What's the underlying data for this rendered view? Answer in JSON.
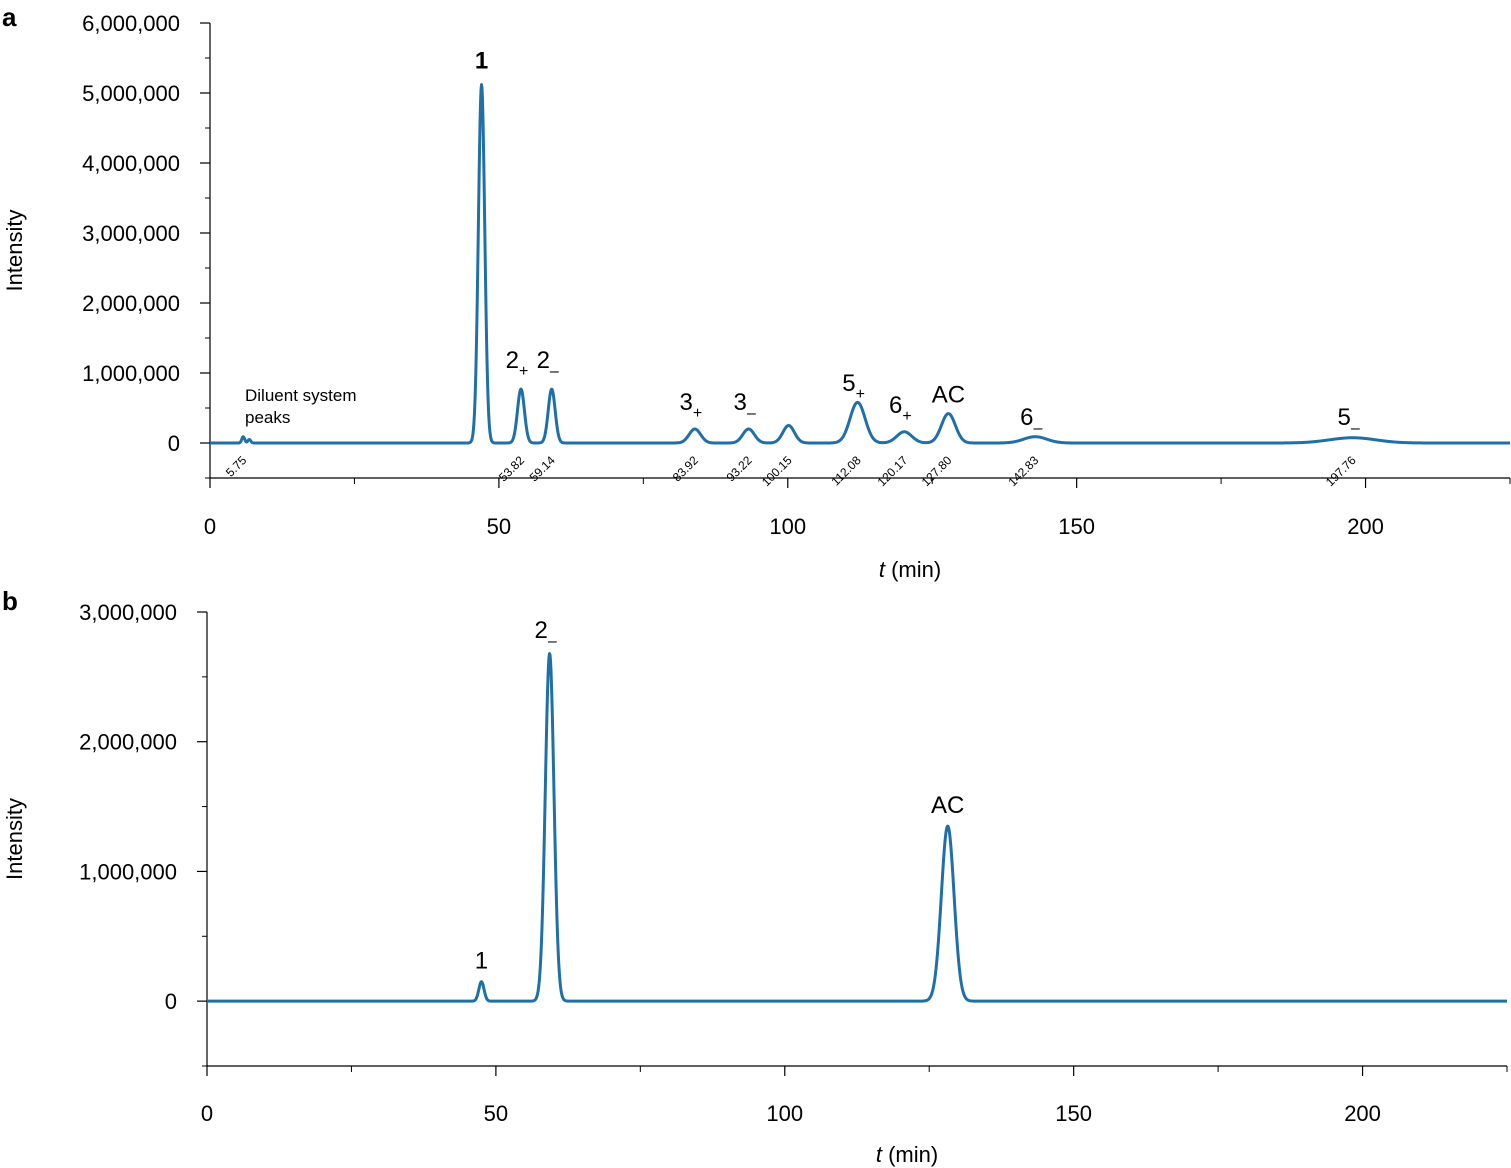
{
  "chart_data": [
    {
      "panel": "a",
      "type": "line",
      "xlabel_italic": "t",
      "xlabel_rest": " (min)",
      "ylabel": "Intensity",
      "xlim": [
        0,
        225
      ],
      "ylim": [
        -500000,
        6000000
      ],
      "xticks": [
        0,
        50,
        100,
        150,
        200
      ],
      "xtick_labels": [
        "0",
        "50",
        "100",
        "150",
        "200"
      ],
      "yticks": [
        0,
        1000000,
        2000000,
        3000000,
        4000000,
        5000000,
        6000000
      ],
      "ytick_labels": [
        "0",
        "1,000,000",
        "2,000,000",
        "3,000,000",
        "4,000,000",
        "5,000,000",
        "6,000,000"
      ],
      "line_color": "#1f6fa8",
      "peaks": [
        {
          "t": 5.75,
          "height": 90000,
          "sigma": 0.25
        },
        {
          "t": 6.8,
          "height": 50000,
          "sigma": 0.25
        },
        {
          "t": 47.0,
          "height": 5120000,
          "sigma": 0.55
        },
        {
          "t": 53.82,
          "height": 770000,
          "sigma": 0.6
        },
        {
          "t": 59.14,
          "height": 770000,
          "sigma": 0.6
        },
        {
          "t": 83.92,
          "height": 200000,
          "sigma": 1.0
        },
        {
          "t": 93.22,
          "height": 200000,
          "sigma": 1.0
        },
        {
          "t": 100.15,
          "height": 250000,
          "sigma": 1.0
        },
        {
          "t": 112.08,
          "height": 580000,
          "sigma": 1.3
        },
        {
          "t": 120.17,
          "height": 160000,
          "sigma": 1.3
        },
        {
          "t": 127.8,
          "height": 420000,
          "sigma": 1.2
        },
        {
          "t": 142.83,
          "height": 90000,
          "sigma": 2.0
        },
        {
          "t": 197.76,
          "height": 75000,
          "sigma": 4.0
        }
      ],
      "retention_labels": [
        "5.75",
        "53.82",
        "59.14",
        "83.92",
        "93.22",
        "100.15",
        "112.08",
        "120.17",
        "127.80",
        "142.83",
        "197.76"
      ],
      "retention_times": [
        5.75,
        53.82,
        59.14,
        83.92,
        93.22,
        100.15,
        112.08,
        120.17,
        127.8,
        142.83,
        197.76
      ],
      "peak_labels": [
        {
          "main": "1",
          "sub": "",
          "t": 47.0,
          "y": 5350000,
          "bold": true
        },
        {
          "main": "2",
          "sub": "+",
          "t": 53.82,
          "y": 1070000
        },
        {
          "main": "2",
          "sub": "–",
          "t": 59.14,
          "y": 1070000
        },
        {
          "main": "3",
          "sub": "+",
          "t": 83.92,
          "y": 470000
        },
        {
          "main": "3",
          "sub": "–",
          "t": 93.22,
          "y": 470000
        },
        {
          "main": "5",
          "sub": "+",
          "t": 112.08,
          "y": 740000
        },
        {
          "main": "6",
          "sub": "+",
          "t": 120.17,
          "y": 430000
        },
        {
          "main": "AC",
          "sub": "",
          "t": 127.8,
          "y": 580000
        },
        {
          "main": "6",
          "sub": "–",
          "t": 142.83,
          "y": 260000
        },
        {
          "main": "5",
          "sub": "–",
          "t": 197.76,
          "y": 260000
        }
      ],
      "annotation": [
        "Diluent system",
        "peaks"
      ]
    },
    {
      "panel": "b",
      "type": "line",
      "xlabel_italic": "t",
      "xlabel_rest": " (min)",
      "ylabel": "Intensity",
      "xlim": [
        0,
        225
      ],
      "ylim": [
        -500000,
        3000000
      ],
      "xticks": [
        0,
        50,
        100,
        150,
        200
      ],
      "xtick_labels": [
        "0",
        "50",
        "100",
        "150",
        "200"
      ],
      "yticks": [
        0,
        1000000,
        2000000,
        3000000
      ],
      "ytick_labels": [
        "0",
        "1,000,000",
        "2,000,000",
        "3,000,000"
      ],
      "line_color": "#1f6fa8",
      "peaks": [
        {
          "t": 47.5,
          "height": 150000,
          "sigma": 0.45
        },
        {
          "t": 59.3,
          "height": 2680000,
          "sigma": 0.75
        },
        {
          "t": 128.2,
          "height": 1350000,
          "sigma": 1.1
        }
      ],
      "peak_labels": [
        {
          "main": "1",
          "sub": "",
          "t": 47.5,
          "y": 250000
        },
        {
          "main": "2",
          "sub": "–",
          "t": 59.3,
          "y": 2800000
        },
        {
          "main": "AC",
          "sub": "",
          "t": 128.2,
          "y": 1450000
        }
      ]
    }
  ]
}
